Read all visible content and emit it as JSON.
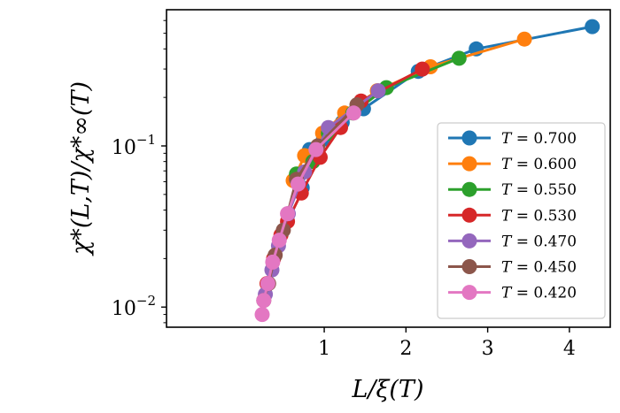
{
  "chart_data": {
    "type": "line",
    "title": "",
    "xlabel": "L/ξ(T)",
    "ylabel": "χ*(L,T)/χ*∞(T)",
    "xscale": "linear",
    "yscale": "log",
    "xlim": [
      -0.93,
      4.5
    ],
    "ylim": [
      0.0075,
      0.7
    ],
    "xticks": [
      {
        "value": 1,
        "label": "1"
      },
      {
        "value": 2,
        "label": "2"
      },
      {
        "value": 3,
        "label": "3"
      },
      {
        "value": 4,
        "label": "4"
      }
    ],
    "yticks": [
      {
        "value": 0.01,
        "base": "10",
        "exp": "−2"
      },
      {
        "value": 0.1,
        "base": "10",
        "exp": "−1"
      }
    ],
    "legend_position": "lower-right",
    "series": [
      {
        "name": "T = 0.700",
        "label_var": "T",
        "label_value": "= 0.700",
        "color": "#1f77b4",
        "x": [
          0.73,
          0.82,
          0.99,
          1.22,
          1.48,
          2.15,
          2.86,
          4.28
        ],
        "y": [
          0.055,
          0.095,
          0.11,
          0.14,
          0.17,
          0.29,
          0.4,
          0.55
        ]
      },
      {
        "name": "T = 0.600",
        "label_var": "T",
        "label_value": "= 0.600",
        "color": "#ff7f0e",
        "x": [
          0.62,
          0.76,
          0.98,
          1.25,
          1.65,
          2.3,
          3.45
        ],
        "y": [
          0.061,
          0.087,
          0.12,
          0.16,
          0.22,
          0.31,
          0.46
        ]
      },
      {
        "name": "T = 0.550",
        "label_var": "T",
        "label_value": "= 0.550",
        "color": "#2ca02c",
        "x": [
          0.66,
          0.86,
          1.05,
          1.35,
          1.76,
          2.65
        ],
        "y": [
          0.067,
          0.08,
          0.12,
          0.16,
          0.23,
          0.35
        ]
      },
      {
        "name": "T = 0.530",
        "label_var": "T",
        "label_value": "= 0.530",
        "color": "#d62728",
        "x": [
          0.3,
          0.38,
          0.47,
          0.55,
          0.72,
          0.95,
          1.2,
          1.45,
          2.2
        ],
        "y": [
          0.014,
          0.02,
          0.028,
          0.034,
          0.051,
          0.085,
          0.13,
          0.19,
          0.3
        ]
      },
      {
        "name": "T = 0.470",
        "label_var": "T",
        "label_value": "= 0.470",
        "color": "#9467bd",
        "x": [
          0.28,
          0.36,
          0.44,
          0.56,
          0.76,
          1.05,
          1.66
        ],
        "y": [
          0.012,
          0.017,
          0.024,
          0.038,
          0.069,
          0.13,
          0.22
        ]
      },
      {
        "name": "T = 0.450",
        "label_var": "T",
        "label_value": "= 0.450",
        "color": "#8c564b",
        "x": [
          0.26,
          0.32,
          0.4,
          0.5,
          0.66,
          0.92,
          1.4
        ],
        "y": [
          0.011,
          0.014,
          0.021,
          0.03,
          0.062,
          0.1,
          0.18
        ]
      },
      {
        "name": "T = 0.420",
        "label_var": "T",
        "label_value": "= 0.420",
        "color": "#e377c2",
        "x": [
          0.24,
          0.26,
          0.31,
          0.37,
          0.45,
          0.55,
          0.68,
          0.9,
          1.36
        ],
        "y": [
          0.009,
          0.011,
          0.014,
          0.019,
          0.026,
          0.038,
          0.058,
          0.095,
          0.16
        ]
      }
    ]
  }
}
